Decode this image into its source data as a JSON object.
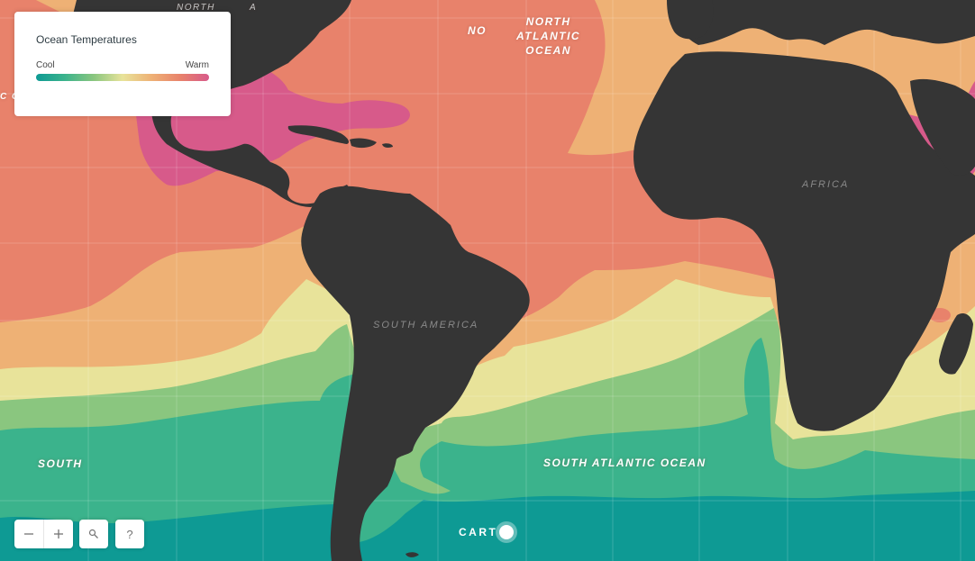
{
  "legend": {
    "title": "Ocean Temperatures",
    "cool_label": "Cool",
    "warm_label": "Warm",
    "gradient_colors": [
      "#0e9a94",
      "#3bb38c",
      "#8ac67f",
      "#e8e39a",
      "#eeb175",
      "#e8826b",
      "#d75a8a"
    ]
  },
  "map": {
    "ocean_labels": {
      "north_atlantic": [
        "NORTH",
        "ATLANTIC",
        "OCEAN"
      ],
      "north_partial": "NO",
      "south_atlantic": "SOUTH ATLANTIC OCEAN",
      "south_partial": "SOUTH",
      "pacific_partial": "C O",
      "north_america_partial": "NORTH         A"
    },
    "land_labels": {
      "africa": "AFRICA",
      "south_america": "SOUTH AMERICA"
    },
    "colors": {
      "land": "#353535",
      "warmest": "#d75a8a",
      "warm": "#e8826b",
      "mild": "#eeb175",
      "temperate": "#e8e39a",
      "cool": "#8ac67f",
      "cooler": "#3bb38c",
      "cold": "#0e9a94"
    }
  },
  "controls": {
    "zoom_out_icon": "minus-icon",
    "zoom_in_icon": "plus-icon",
    "search_icon": "search-icon",
    "help_label": "?"
  },
  "attribution": {
    "brand": "CARTO"
  }
}
